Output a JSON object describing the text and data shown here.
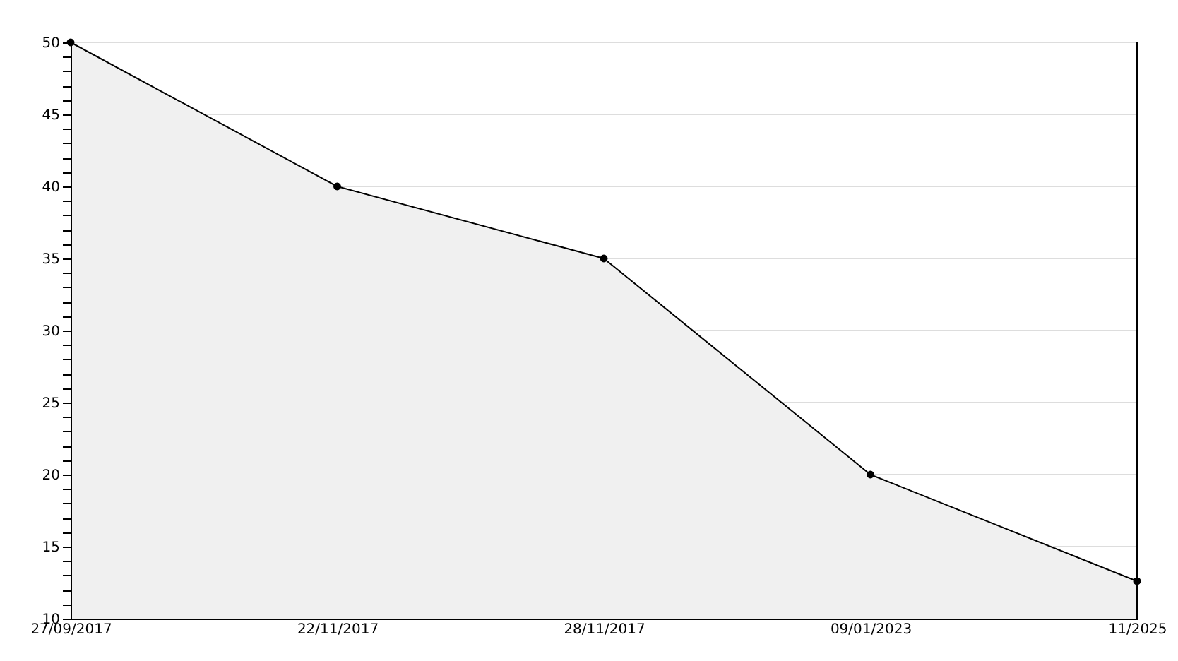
{
  "chart_data": {
    "type": "area",
    "categories": [
      "27/09/2017",
      "22/11/2017",
      "28/11/2017",
      "09/01/2023",
      "11/2025"
    ],
    "series": [
      {
        "color": "#000000",
        "values": [
          50,
          40,
          35,
          20,
          12.6
        ]
      }
    ],
    "ylim": [
      10,
      50
    ],
    "yticks": [
      10,
      {
        "value": 11,
        "label": null
      },
      {
        "value": 12,
        "label": null
      },
      {
        "value": 13,
        "label": null
      },
      {
        "value": 14,
        "label": null
      },
      15,
      {
        "value": 16,
        "label": null
      },
      {
        "value": 17,
        "label": null
      },
      {
        "value": 18,
        "label": null
      },
      {
        "value": 19,
        "label": null
      },
      20,
      {
        "value": 21,
        "label": null
      },
      {
        "value": 22,
        "label": null
      },
      {
        "value": 23,
        "label": null
      },
      {
        "value": 24,
        "label": null
      },
      25,
      {
        "value": 26,
        "label": null
      },
      {
        "value": 27,
        "label": null
      },
      {
        "value": 28,
        "label": null
      },
      {
        "value": 29,
        "label": null
      },
      30,
      {
        "value": 31,
        "label": null
      },
      {
        "value": 32,
        "label": null
      },
      {
        "value": 33,
        "label": null
      },
      {
        "value": 34,
        "label": null
      },
      35,
      {
        "value": 36,
        "label": null
      },
      {
        "value": 37,
        "label": null
      },
      {
        "value": 38,
        "label": null
      },
      {
        "value": 39,
        "label": null
      },
      40,
      {
        "value": 41,
        "label": null
      },
      {
        "value": 42,
        "label": null
      },
      {
        "value": 43,
        "label": null
      },
      {
        "value": 44,
        "label": null
      },
      45,
      {
        "value": 46,
        "label": null
      },
      {
        "value": 47,
        "label": null
      },
      {
        "value": 48,
        "label": null
      },
      {
        "value": 49,
        "label": null
      },
      50
    ],
    "grid": "y",
    "marker": "circle",
    "line_style": "solid"
  }
}
